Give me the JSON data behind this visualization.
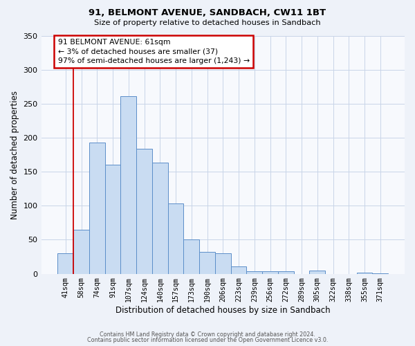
{
  "title": "91, BELMONT AVENUE, SANDBACH, CW11 1BT",
  "subtitle": "Size of property relative to detached houses in Sandbach",
  "xlabel": "Distribution of detached houses by size in Sandbach",
  "ylabel": "Number of detached properties",
  "bar_labels": [
    "41sqm",
    "58sqm",
    "74sqm",
    "91sqm",
    "107sqm",
    "124sqm",
    "140sqm",
    "157sqm",
    "173sqm",
    "190sqm",
    "206sqm",
    "223sqm",
    "239sqm",
    "256sqm",
    "272sqm",
    "289sqm",
    "305sqm",
    "322sqm",
    "338sqm",
    "355sqm",
    "371sqm"
  ],
  "bar_heights": [
    30,
    65,
    193,
    160,
    261,
    184,
    163,
    103,
    50,
    32,
    30,
    11,
    4,
    4,
    4,
    0,
    5,
    0,
    0,
    2,
    1
  ],
  "bar_color": "#c9dcf2",
  "bar_edge_color": "#5b8ec9",
  "vline_x": 0.5,
  "vline_color": "#cc0000",
  "annotation_box_text": "91 BELMONT AVENUE: 61sqm\n← 3% of detached houses are smaller (37)\n97% of semi-detached houses are larger (1,243) →",
  "annotation_box_color": "#cc0000",
  "ylim": [
    0,
    350
  ],
  "yticks": [
    0,
    50,
    100,
    150,
    200,
    250,
    300,
    350
  ],
  "footer1": "Contains HM Land Registry data © Crown copyright and database right 2024.",
  "footer2": "Contains public sector information licensed under the Open Government Licence v3.0.",
  "background_color": "#eef2f9",
  "plot_background_color": "#f7f9fd",
  "grid_color": "#c8d4e8"
}
